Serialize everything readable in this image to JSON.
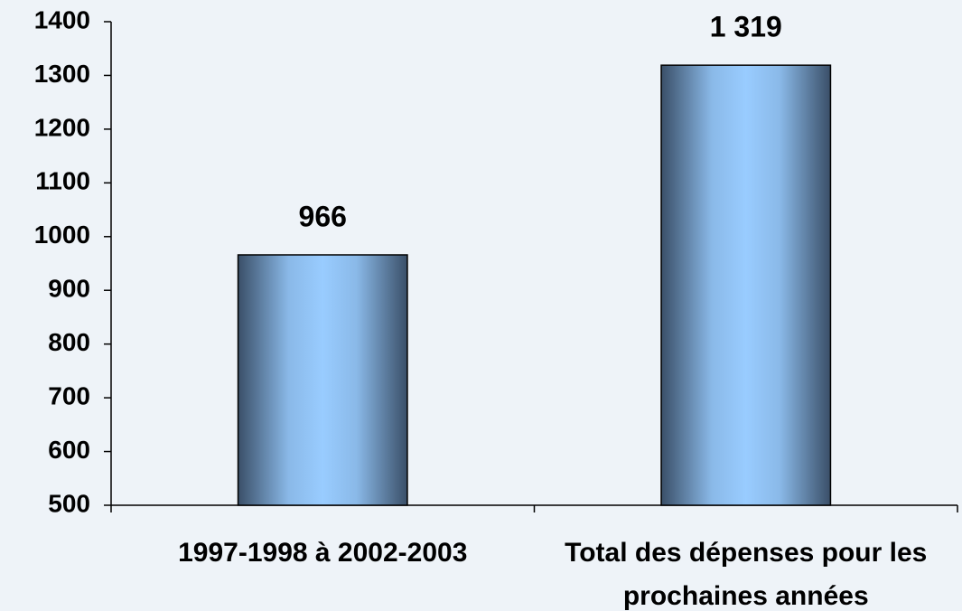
{
  "chart_data": {
    "type": "bar",
    "categories": [
      "1997-1998 à 2002-2003",
      "Total des dépenses pour les prochaines années"
    ],
    "values": [
      966,
      1319
    ],
    "value_labels": [
      "966",
      "1 319"
    ],
    "color": "#99ccff",
    "ylim": [
      500,
      1400
    ],
    "yticks": [
      500,
      600,
      700,
      800,
      900,
      1000,
      1100,
      1200,
      1300,
      1400
    ],
    "grid": false
  }
}
